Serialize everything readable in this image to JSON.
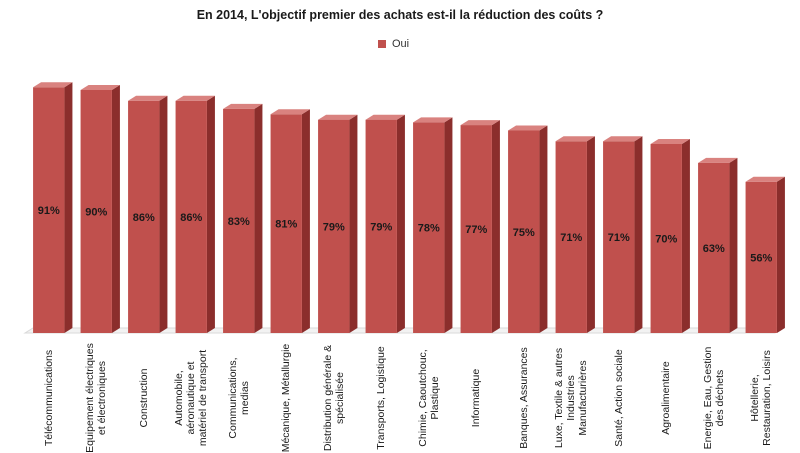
{
  "title": "En 2014, L'objectif premier des achats est-il la réduction des coûts ?",
  "legend": {
    "label": "Oui",
    "color": "#c0504d"
  },
  "chart_data": {
    "type": "bar",
    "title": "En 2014, L'objectif premier des achats est-il la réduction des coûts ?",
    "categories": [
      "Télécommunications",
      "Equipement électriques et électroniques",
      "Construction",
      "Automobile, aéronautique et matériel de transport",
      "Communications, medias",
      "Mécanique, Métallurgie",
      "Distribution générale & spécialisée",
      "Transports, Logistique",
      "Chimie, Caoutchouc, Plastique",
      "Informatique",
      "Banques, Assurances",
      "Luxe, Textile & autres Industries Manufacturières",
      "Santé, Action sociale",
      "Agroalimentaire",
      "Energie, Eau, Gestion des déchets",
      "Hôtellerie, Restauration, Loisirs"
    ],
    "series": [
      {
        "name": "Oui",
        "values": [
          91,
          90,
          86,
          86,
          83,
          81,
          79,
          79,
          78,
          77,
          75,
          71,
          71,
          70,
          63,
          56
        ]
      }
    ],
    "data_labels": [
      "91%",
      "90%",
      "86%",
      "86%",
      "83%",
      "81%",
      "79%",
      "79%",
      "78%",
      "77%",
      "75%",
      "71%",
      "71%",
      "70%",
      "63%",
      "56%"
    ],
    "ylim": [
      0,
      100
    ],
    "bar_style": "3d",
    "legend_position": "top",
    "grid": false
  }
}
